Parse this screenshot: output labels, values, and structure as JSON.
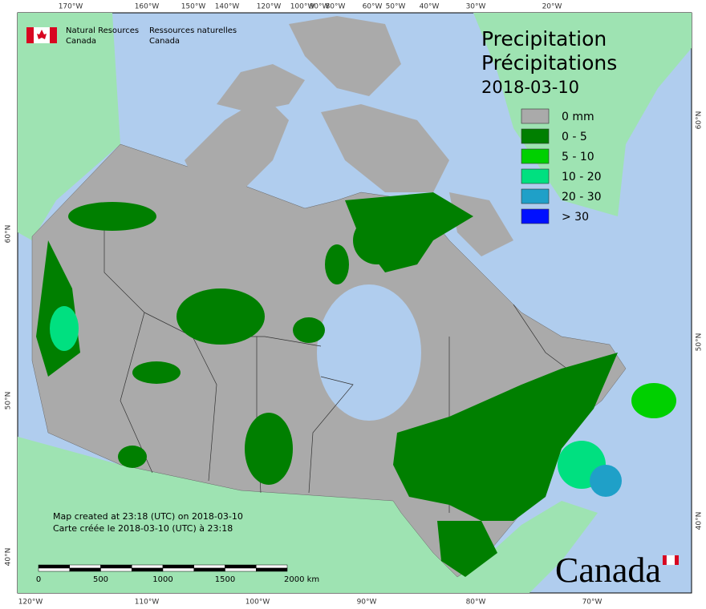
{
  "header": {
    "agency_en": [
      "Natural Resources",
      "Canada"
    ],
    "agency_fr": [
      "Ressources naturelles",
      "Canada"
    ]
  },
  "title": [
    "Precipitation",
    "Précipitations"
  ],
  "date": "2018-03-10",
  "legend": [
    {
      "label": "0 mm",
      "color": "#aaaaaa"
    },
    {
      "label": "0 - 5",
      "color": "#007f00"
    },
    {
      "label": "5 - 10",
      "color": "#00d000"
    },
    {
      "label": "10 - 20",
      "color": "#00e080"
    },
    {
      "label": "20 - 30",
      "color": "#1fa0c8"
    },
    {
      "label": "> 30",
      "color": "#0010ff"
    }
  ],
  "graticule": {
    "top": [
      "170°W",
      "160°W",
      "150°W",
      "140°W",
      "120°W",
      "100°W",
      "90°W",
      "80°W",
      "60°W",
      "50°W",
      "40°W",
      "30°W",
      "20°W"
    ],
    "bottom": [
      "120°W",
      "110°W",
      "100°W",
      "90°W",
      "80°W",
      "70°W"
    ],
    "left": [
      "60°N",
      "50°N",
      "40°N"
    ],
    "right": [
      "60°N",
      "50°N",
      "40°N"
    ]
  },
  "footer": [
    "Map created at 23:18 (UTC) on 2018-03-10",
    "Carte créée le 2018-03-10 (UTC) à 23:18"
  ],
  "scale_bar": [
    "0",
    "500",
    "1000",
    "1500",
    "2000 km"
  ],
  "wordmark": "Canada"
}
